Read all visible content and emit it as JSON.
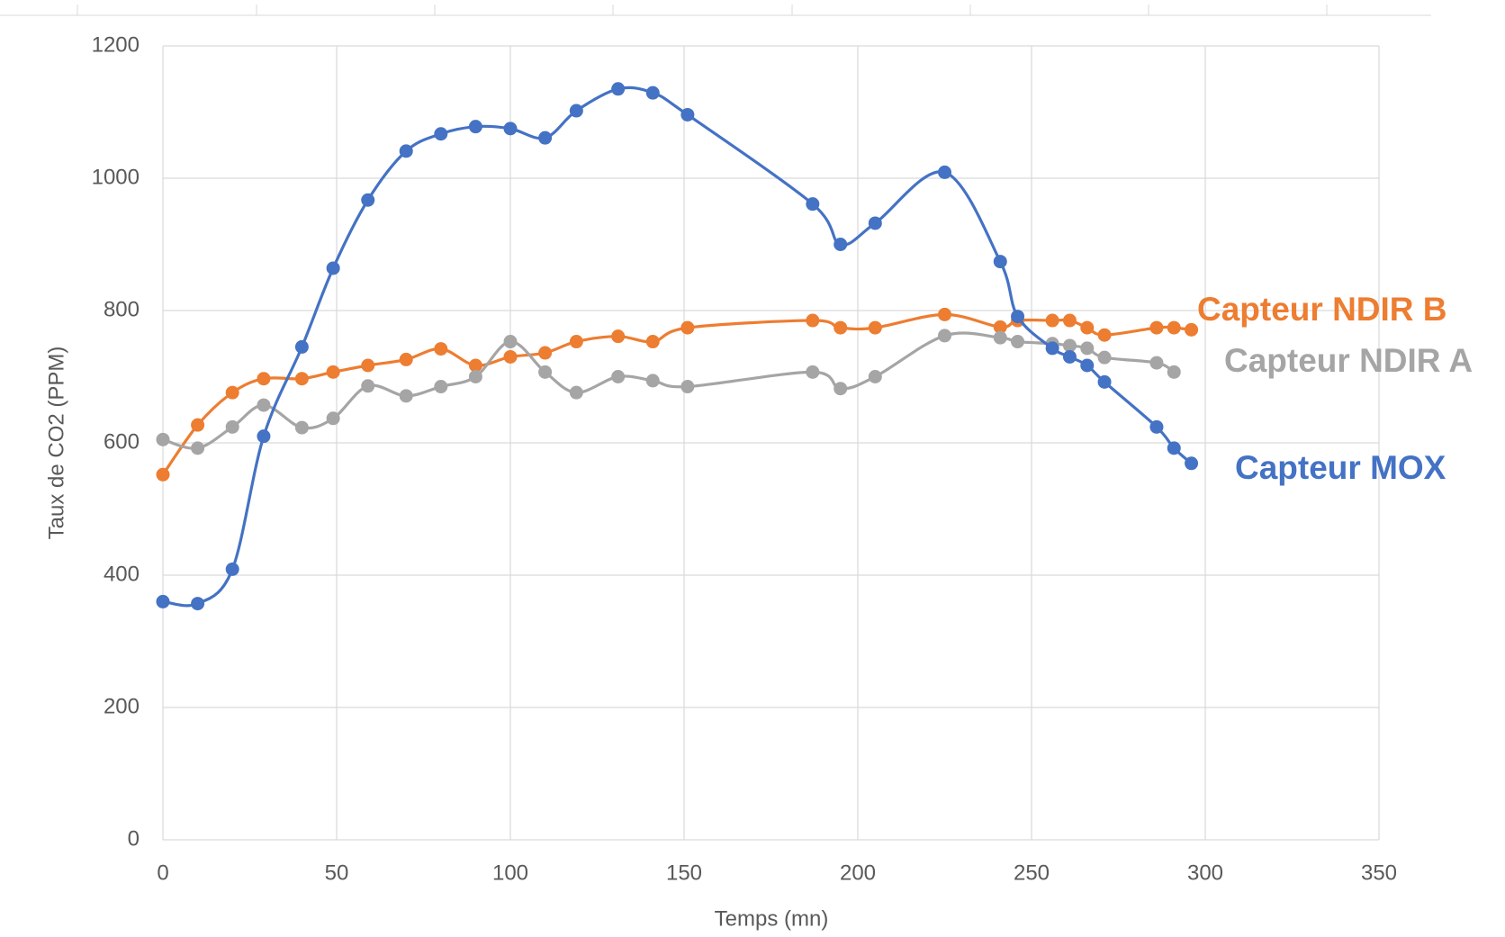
{
  "chart_data": {
    "type": "line",
    "smooth": true,
    "x_label": "Temps (mn)",
    "y_label": "Taux de CO2 (PPM)",
    "xlim": [
      0,
      350
    ],
    "xticks": [
      0,
      50,
      100,
      150,
      200,
      250,
      300,
      350
    ],
    "ylim": [
      0,
      1200
    ],
    "yticks": [
      0,
      200,
      400,
      600,
      800,
      1000,
      1200
    ],
    "grid": true,
    "series": [
      {
        "name": "Capteur NDIR B",
        "color": "#ed7d31",
        "x": [
          0,
          10,
          20,
          29,
          40,
          49,
          59,
          70,
          80,
          90,
          100,
          110,
          119,
          131,
          141,
          151,
          187,
          195,
          205,
          225,
          241,
          246,
          256,
          261,
          266,
          271,
          286,
          291,
          296
        ],
        "values": [
          552,
          627,
          676,
          697,
          697,
          707,
          717,
          726,
          742,
          717,
          730,
          736,
          753,
          761,
          753,
          774,
          785,
          774,
          774,
          794,
          775,
          785,
          785,
          785,
          774,
          763,
          774,
          774,
          771
        ]
      },
      {
        "name": "Capteur NDIR A",
        "color": "#a5a5a5",
        "x": [
          0,
          10,
          20,
          29,
          40,
          49,
          59,
          70,
          80,
          90,
          100,
          110,
          119,
          131,
          141,
          151,
          187,
          195,
          205,
          225,
          241,
          246,
          256,
          261,
          266,
          271,
          286,
          291
        ],
        "values": [
          605,
          592,
          624,
          657,
          623,
          637,
          686,
          671,
          685,
          700,
          753,
          707,
          676,
          700,
          694,
          685,
          707,
          682,
          700,
          762,
          759,
          753,
          750,
          747,
          743,
          729,
          721,
          707
        ]
      },
      {
        "name": "Capteur MOX",
        "color": "#4472c4",
        "x": [
          0,
          10,
          20,
          29,
          40,
          49,
          59,
          70,
          80,
          90,
          100,
          110,
          119,
          131,
          141,
          151,
          187,
          195,
          205,
          225,
          241,
          246,
          256,
          261,
          266,
          271,
          286,
          291,
          296
        ],
        "values": [
          360,
          357,
          409,
          610,
          745,
          864,
          967,
          1041,
          1067,
          1078,
          1075,
          1061,
          1102,
          1135,
          1129,
          1096,
          961,
          900,
          932,
          1009,
          874,
          791,
          743,
          730,
          717,
          692,
          624,
          592,
          569
        ]
      }
    ]
  }
}
